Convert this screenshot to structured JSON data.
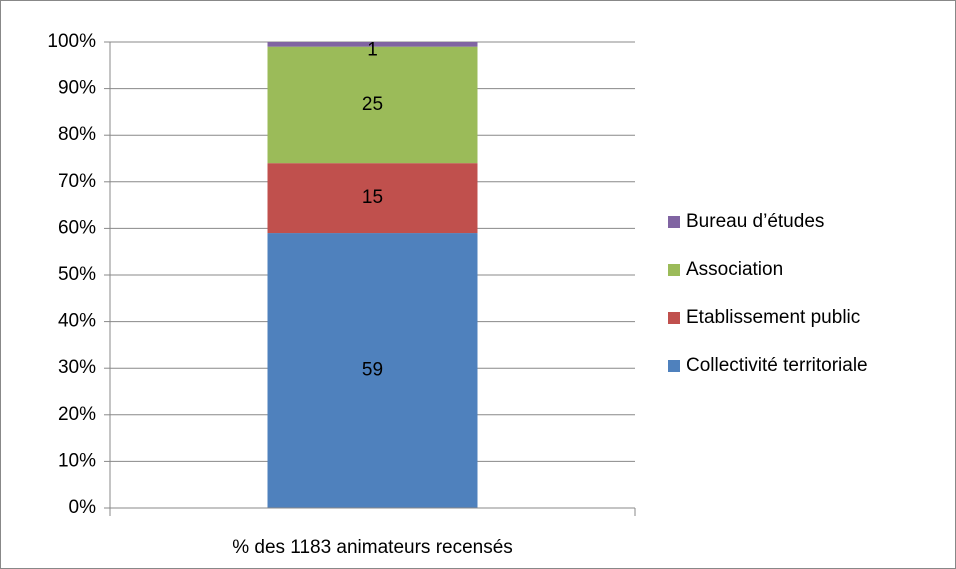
{
  "chart_data": {
    "type": "stacked_bar",
    "categories": [
      "% des 1183 animateurs recensés"
    ],
    "series": [
      {
        "name": "Collectivité territoriale",
        "color": "#4f81bd",
        "values": [
          59
        ]
      },
      {
        "name": "Etablissement public",
        "color": "#c0504d",
        "values": [
          15
        ]
      },
      {
        "name": "Association",
        "color": "#9bbb59",
        "values": [
          25
        ]
      },
      {
        "name": "Bureau d’études",
        "color": "#8064a2",
        "values": [
          1
        ]
      }
    ],
    "ylim": [
      0,
      100
    ],
    "yticks": [
      {
        "value": 0,
        "label": "0%"
      },
      {
        "value": 10,
        "label": "10%"
      },
      {
        "value": 20,
        "label": "20%"
      },
      {
        "value": 30,
        "label": "30%"
      },
      {
        "value": 40,
        "label": "40%"
      },
      {
        "value": 50,
        "label": "50%"
      },
      {
        "value": 60,
        "label": "60%"
      },
      {
        "value": 70,
        "label": "70%"
      },
      {
        "value": 80,
        "label": "80%"
      },
      {
        "value": 90,
        "label": "90%"
      },
      {
        "value": 100,
        "label": "100%"
      }
    ],
    "grid": true,
    "legend": "right"
  }
}
